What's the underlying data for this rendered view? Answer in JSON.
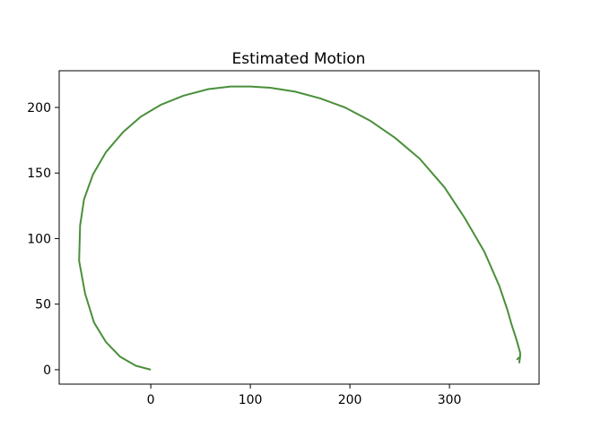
{
  "chart_data": {
    "type": "line",
    "title": "Estimated Motion",
    "xlabel": "",
    "ylabel": "",
    "xlim": [
      -92,
      390
    ],
    "ylim": [
      -11,
      228
    ],
    "x_ticks": [
      0,
      100,
      200,
      300
    ],
    "y_ticks": [
      0,
      50,
      100,
      150,
      200
    ],
    "grid": false,
    "series": [
      {
        "color": "#4a8f3a",
        "x": [
          0,
          -15,
          -31,
          -45,
          -57,
          -66,
          -72,
          -71,
          -67,
          -58,
          -45,
          -28,
          -10,
          10,
          33,
          58,
          80,
          100,
          120,
          145,
          170,
          195,
          220,
          245,
          270,
          295,
          315,
          335,
          350,
          358,
          363,
          366,
          368,
          371,
          371,
          368,
          371,
          370
        ],
        "y": [
          0,
          3,
          10,
          21,
          36,
          58,
          83,
          110,
          130,
          149,
          166,
          181,
          193,
          202,
          209,
          214,
          216,
          216,
          215,
          212,
          207,
          200,
          190,
          177,
          161,
          139,
          116,
          90,
          64,
          46,
          33,
          26,
          21,
          13,
          10,
          8,
          10,
          5
        ]
      }
    ]
  }
}
